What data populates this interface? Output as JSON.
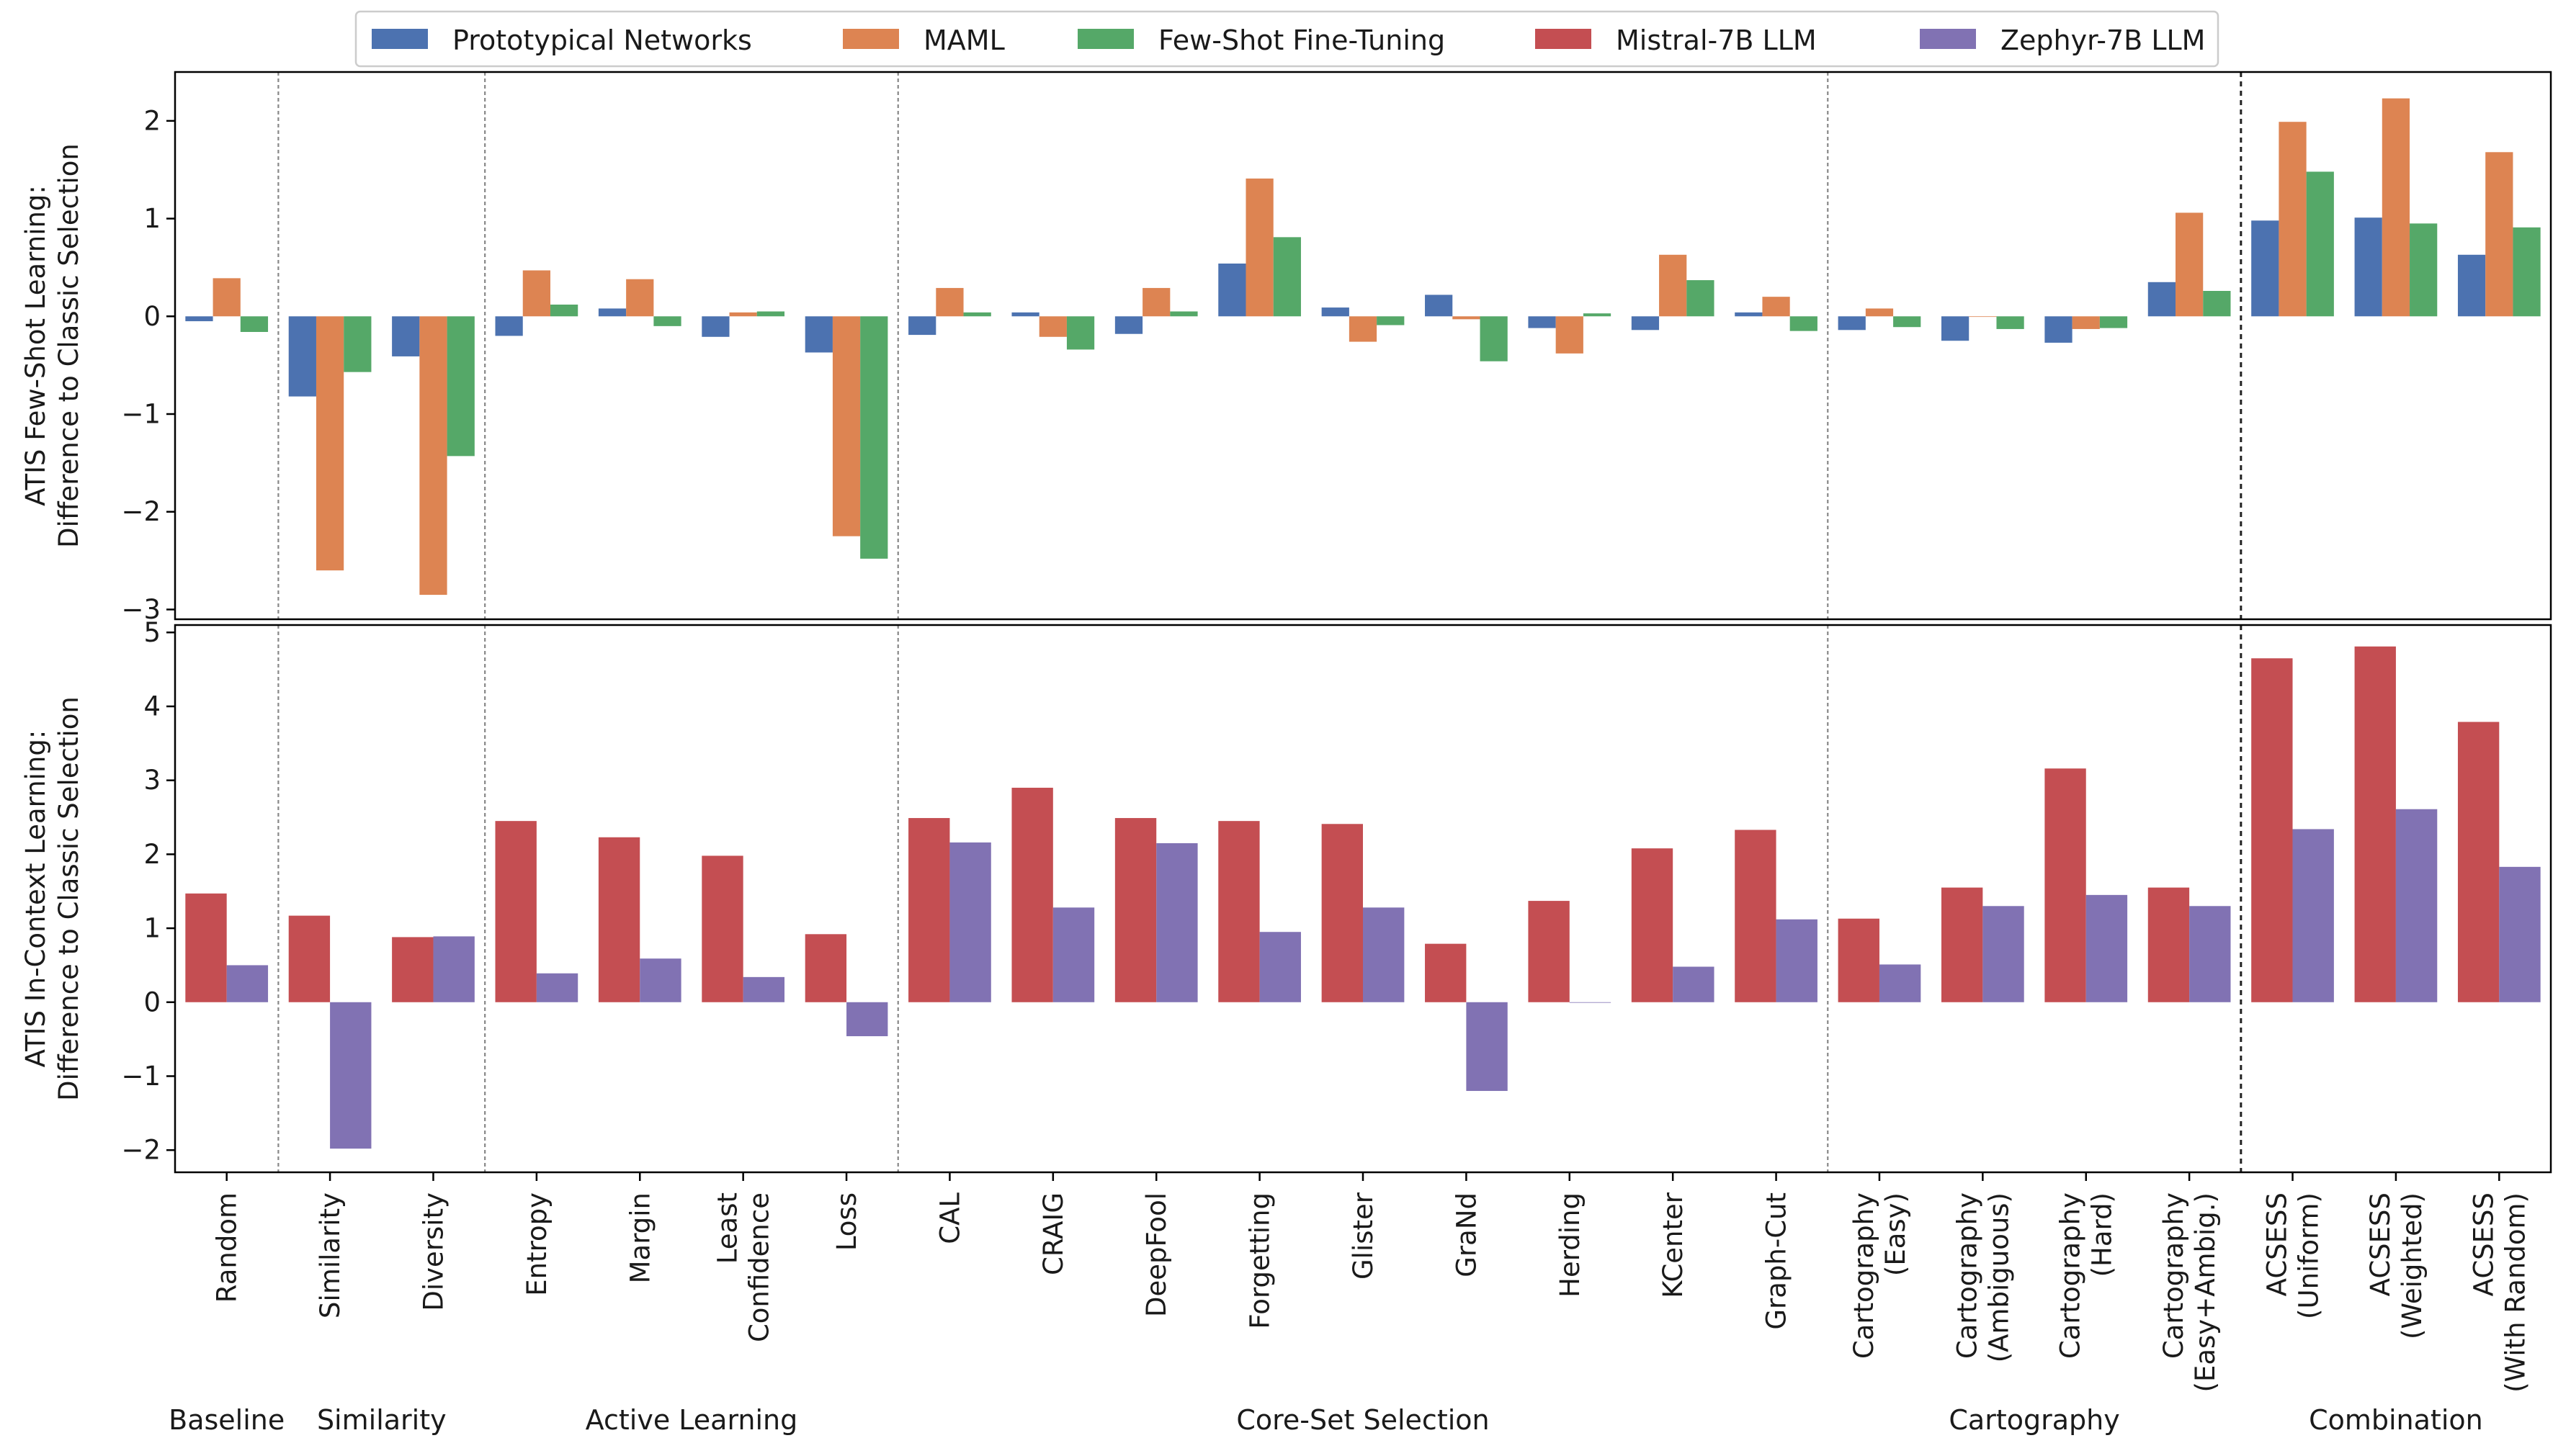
{
  "chart_data": {
    "type": "bar",
    "legend": {
      "placement": "top-center",
      "entries": [
        {
          "name": "Prototypical Networks",
          "color": "#4c72b0"
        },
        {
          "name": "MAML",
          "color": "#dd8452"
        },
        {
          "name": "Few-Shot Fine-Tuning",
          "color": "#55a868"
        },
        {
          "name": "Mistral-7B LLM",
          "color": "#c44e52"
        },
        {
          "name": "Zephyr-7B LLM",
          "color": "#8172b3"
        }
      ]
    },
    "categories": [
      [
        "Random"
      ],
      [
        "Similarity"
      ],
      [
        "Diversity"
      ],
      [
        "Entropy"
      ],
      [
        "Margin"
      ],
      [
        "Least",
        "Confidence"
      ],
      [
        "Loss"
      ],
      [
        "CAL"
      ],
      [
        "CRAIG"
      ],
      [
        "DeepFool"
      ],
      [
        "Forgetting"
      ],
      [
        "Glister"
      ],
      [
        "GraNd"
      ],
      [
        "Herding"
      ],
      [
        "KCenter"
      ],
      [
        "Graph-Cut"
      ],
      [
        "Cartography",
        "(Easy)"
      ],
      [
        "Cartography",
        "(Ambiguous)"
      ],
      [
        "Cartography",
        "(Hard)"
      ],
      [
        "Cartography",
        "(Easy+Ambig.)"
      ],
      [
        "ACSESS",
        "(Uniform)"
      ],
      [
        "ACSESS",
        "(Weighted)"
      ],
      [
        "ACSESS",
        "(With Random)"
      ]
    ],
    "groups": [
      {
        "label": "Baseline",
        "start": 0,
        "end": 0
      },
      {
        "label": "Similarity",
        "start": 1,
        "end": 2
      },
      {
        "label": "Active Learning",
        "start": 3,
        "end": 6
      },
      {
        "label": "Core-Set Selection",
        "start": 7,
        "end": 15
      },
      {
        "label": "Cartography",
        "start": 16,
        "end": 19
      },
      {
        "label": "Combination",
        "start": 20,
        "end": 22
      }
    ],
    "group_separators_after": [
      0,
      2,
      6,
      15,
      19
    ],
    "panels": [
      {
        "ylabel": [
          "ATIS Few-Shot Learning:",
          "Difference to Classic Selection"
        ],
        "ylim": [
          -3.1,
          2.5
        ],
        "yticks": [
          -3,
          -2,
          -1,
          0,
          1,
          2
        ],
        "series": [
          {
            "name": "Prototypical Networks",
            "color": "#4c72b0",
            "values": [
              -0.05,
              -0.82,
              -0.41,
              -0.2,
              0.08,
              -0.21,
              -0.37,
              -0.19,
              0.04,
              -0.18,
              0.54,
              0.09,
              0.22,
              -0.12,
              -0.14,
              0.04,
              -0.14,
              -0.25,
              -0.27,
              0.35,
              0.98,
              1.01,
              0.63
            ]
          },
          {
            "name": "MAML",
            "color": "#dd8452",
            "values": [
              0.39,
              -2.6,
              -2.85,
              0.47,
              0.38,
              0.04,
              -2.25,
              0.29,
              -0.21,
              0.29,
              1.41,
              -0.26,
              -0.03,
              -0.38,
              0.63,
              0.2,
              0.08,
              0.0,
              -0.13,
              1.06,
              1.99,
              2.23,
              1.68
            ]
          },
          {
            "name": "Few-Shot Fine-Tuning",
            "color": "#55a868",
            "values": [
              -0.16,
              -0.57,
              -1.43,
              0.12,
              -0.1,
              0.05,
              -2.48,
              0.04,
              -0.34,
              0.05,
              0.81,
              -0.09,
              -0.46,
              0.03,
              0.37,
              -0.15,
              -0.11,
              -0.13,
              -0.12,
              0.26,
              1.48,
              0.95,
              0.91
            ]
          }
        ]
      },
      {
        "ylabel": [
          "ATIS In-Context Learning:",
          "Difference to Classic Selection"
        ],
        "ylim": [
          -2.3,
          5.1
        ],
        "yticks": [
          -2,
          -1,
          0,
          1,
          2,
          3,
          4,
          5
        ],
        "series": [
          {
            "name": "Mistral-7B LLM",
            "color": "#c44e52",
            "values": [
              1.47,
              1.17,
              0.88,
              2.45,
              2.23,
              1.98,
              0.92,
              2.49,
              2.9,
              2.49,
              2.45,
              2.41,
              0.79,
              1.37,
              2.08,
              2.33,
              1.13,
              1.55,
              3.16,
              1.55,
              4.65,
              4.81,
              3.79
            ]
          },
          {
            "name": "Zephyr-7B LLM",
            "color": "#8172b3",
            "values": [
              0.5,
              -1.98,
              0.89,
              0.39,
              0.59,
              0.34,
              -0.46,
              2.16,
              1.28,
              2.15,
              0.95,
              1.28,
              -1.2,
              0.0,
              0.48,
              1.12,
              0.51,
              1.3,
              1.45,
              1.3,
              2.34,
              2.61,
              1.83
            ]
          }
        ]
      }
    ]
  }
}
